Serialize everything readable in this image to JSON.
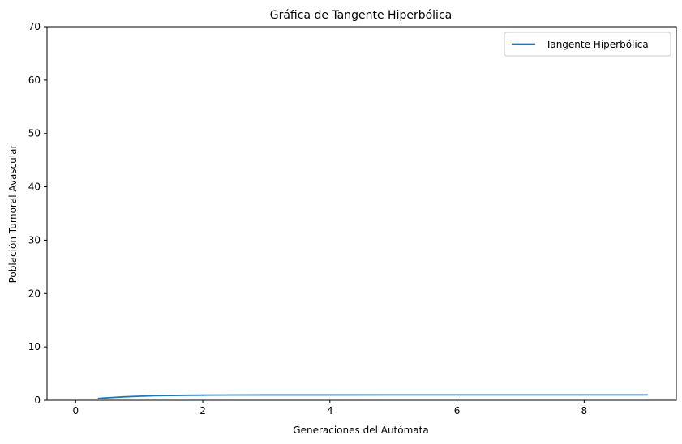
{
  "chart_data": {
    "type": "line",
    "title": "Gráfica de Tangente Hiperbólica",
    "xlabel": "Generaciones del Autómata",
    "ylabel": "Población Tumoral Avascular",
    "xlim": [
      -0.45,
      9.45
    ],
    "ylim": [
      0,
      70
    ],
    "x_ticks": [
      0,
      2,
      4,
      6,
      8
    ],
    "y_ticks": [
      0,
      10,
      20,
      30,
      40,
      50,
      60,
      70
    ],
    "grid": false,
    "legend_position": "top-right",
    "series": [
      {
        "name": "Tangente Hiperbólica",
        "color": "#1f77b4",
        "x": [
          0.35,
          0.5,
          0.75,
          1.0,
          1.25,
          1.5,
          1.75,
          2.0,
          2.5,
          3.0,
          3.5,
          4.0,
          5.0,
          6.0,
          7.0,
          8.0,
          9.0
        ],
        "y": [
          0.34,
          0.46,
          0.64,
          0.76,
          0.85,
          0.9,
          0.94,
          0.96,
          0.99,
          0.995,
          0.998,
          0.999,
          1.0,
          1.0,
          1.0,
          1.0,
          1.0
        ]
      }
    ]
  }
}
